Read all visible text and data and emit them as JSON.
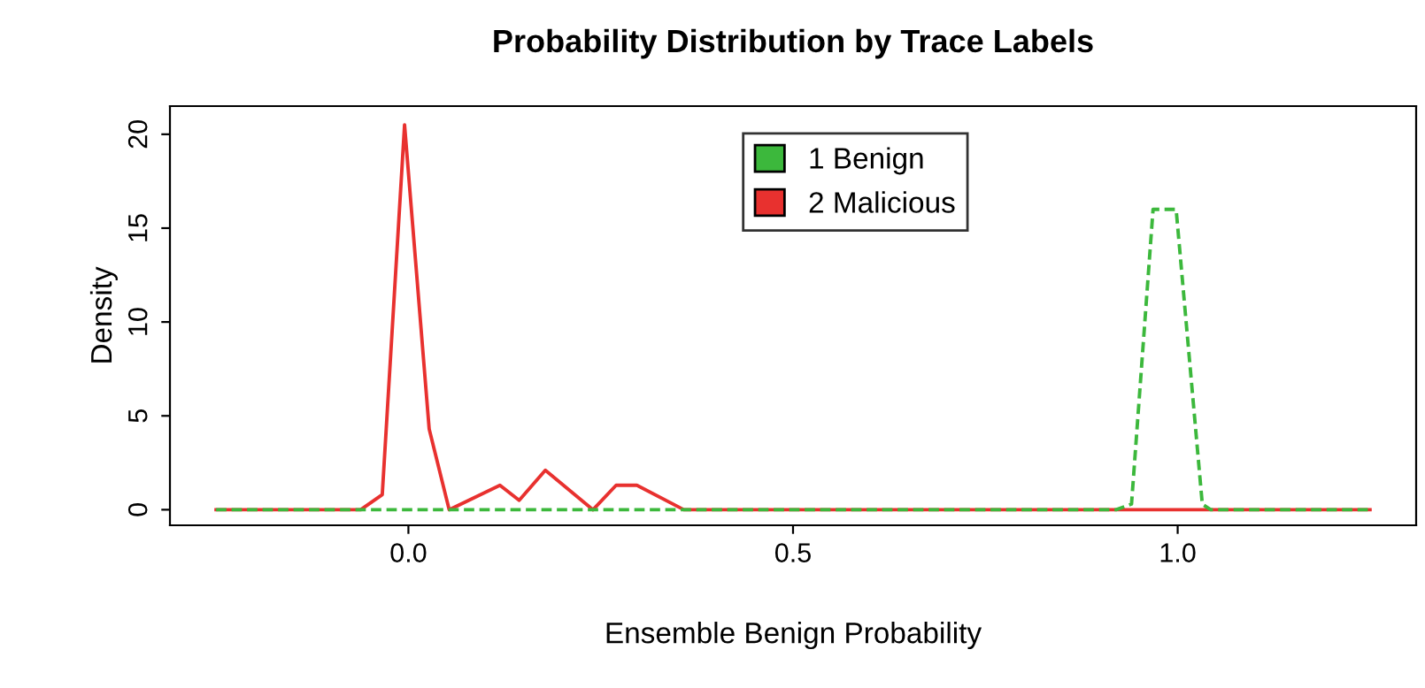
{
  "chart_data": {
    "type": "line",
    "title": "Probability Distribution by Trace Labels",
    "xlabel": "Ensemble Benign Probability",
    "ylabel": "Density",
    "xlim": [
      -0.31,
      1.31
    ],
    "ylim": [
      -0.83,
      21.5
    ],
    "xticks": [
      {
        "value": 0,
        "label": "0.0"
      },
      0.5,
      {
        "value": 1,
        "label": "1.0"
      }
    ],
    "yticks": [
      0,
      5,
      10,
      15,
      20
    ],
    "legend": "top",
    "grid": false,
    "series": [
      {
        "name": "1 Benign",
        "color": "#3cb83c",
        "line_style": "dashed",
        "x": [
          -0.25,
          0.92,
          0.94,
          0.968,
          0.998,
          1.032,
          1.043,
          1.25
        ],
        "values": [
          0,
          0,
          0.3,
          16.0,
          16.0,
          0.3,
          0,
          0
        ]
      },
      {
        "name": "2 Malicious",
        "color": "#e8312f",
        "line_style": "solid",
        "x": [
          -0.25,
          -0.062,
          -0.034,
          -0.005,
          0.027,
          0.053,
          0.119,
          0.144,
          0.178,
          0.24,
          0.27,
          0.297,
          0.358,
          1.25
        ],
        "values": [
          0,
          0,
          0.8,
          20.5,
          4.3,
          0,
          1.3,
          0.5,
          2.1,
          0,
          1.3,
          1.3,
          0,
          0
        ]
      }
    ]
  }
}
